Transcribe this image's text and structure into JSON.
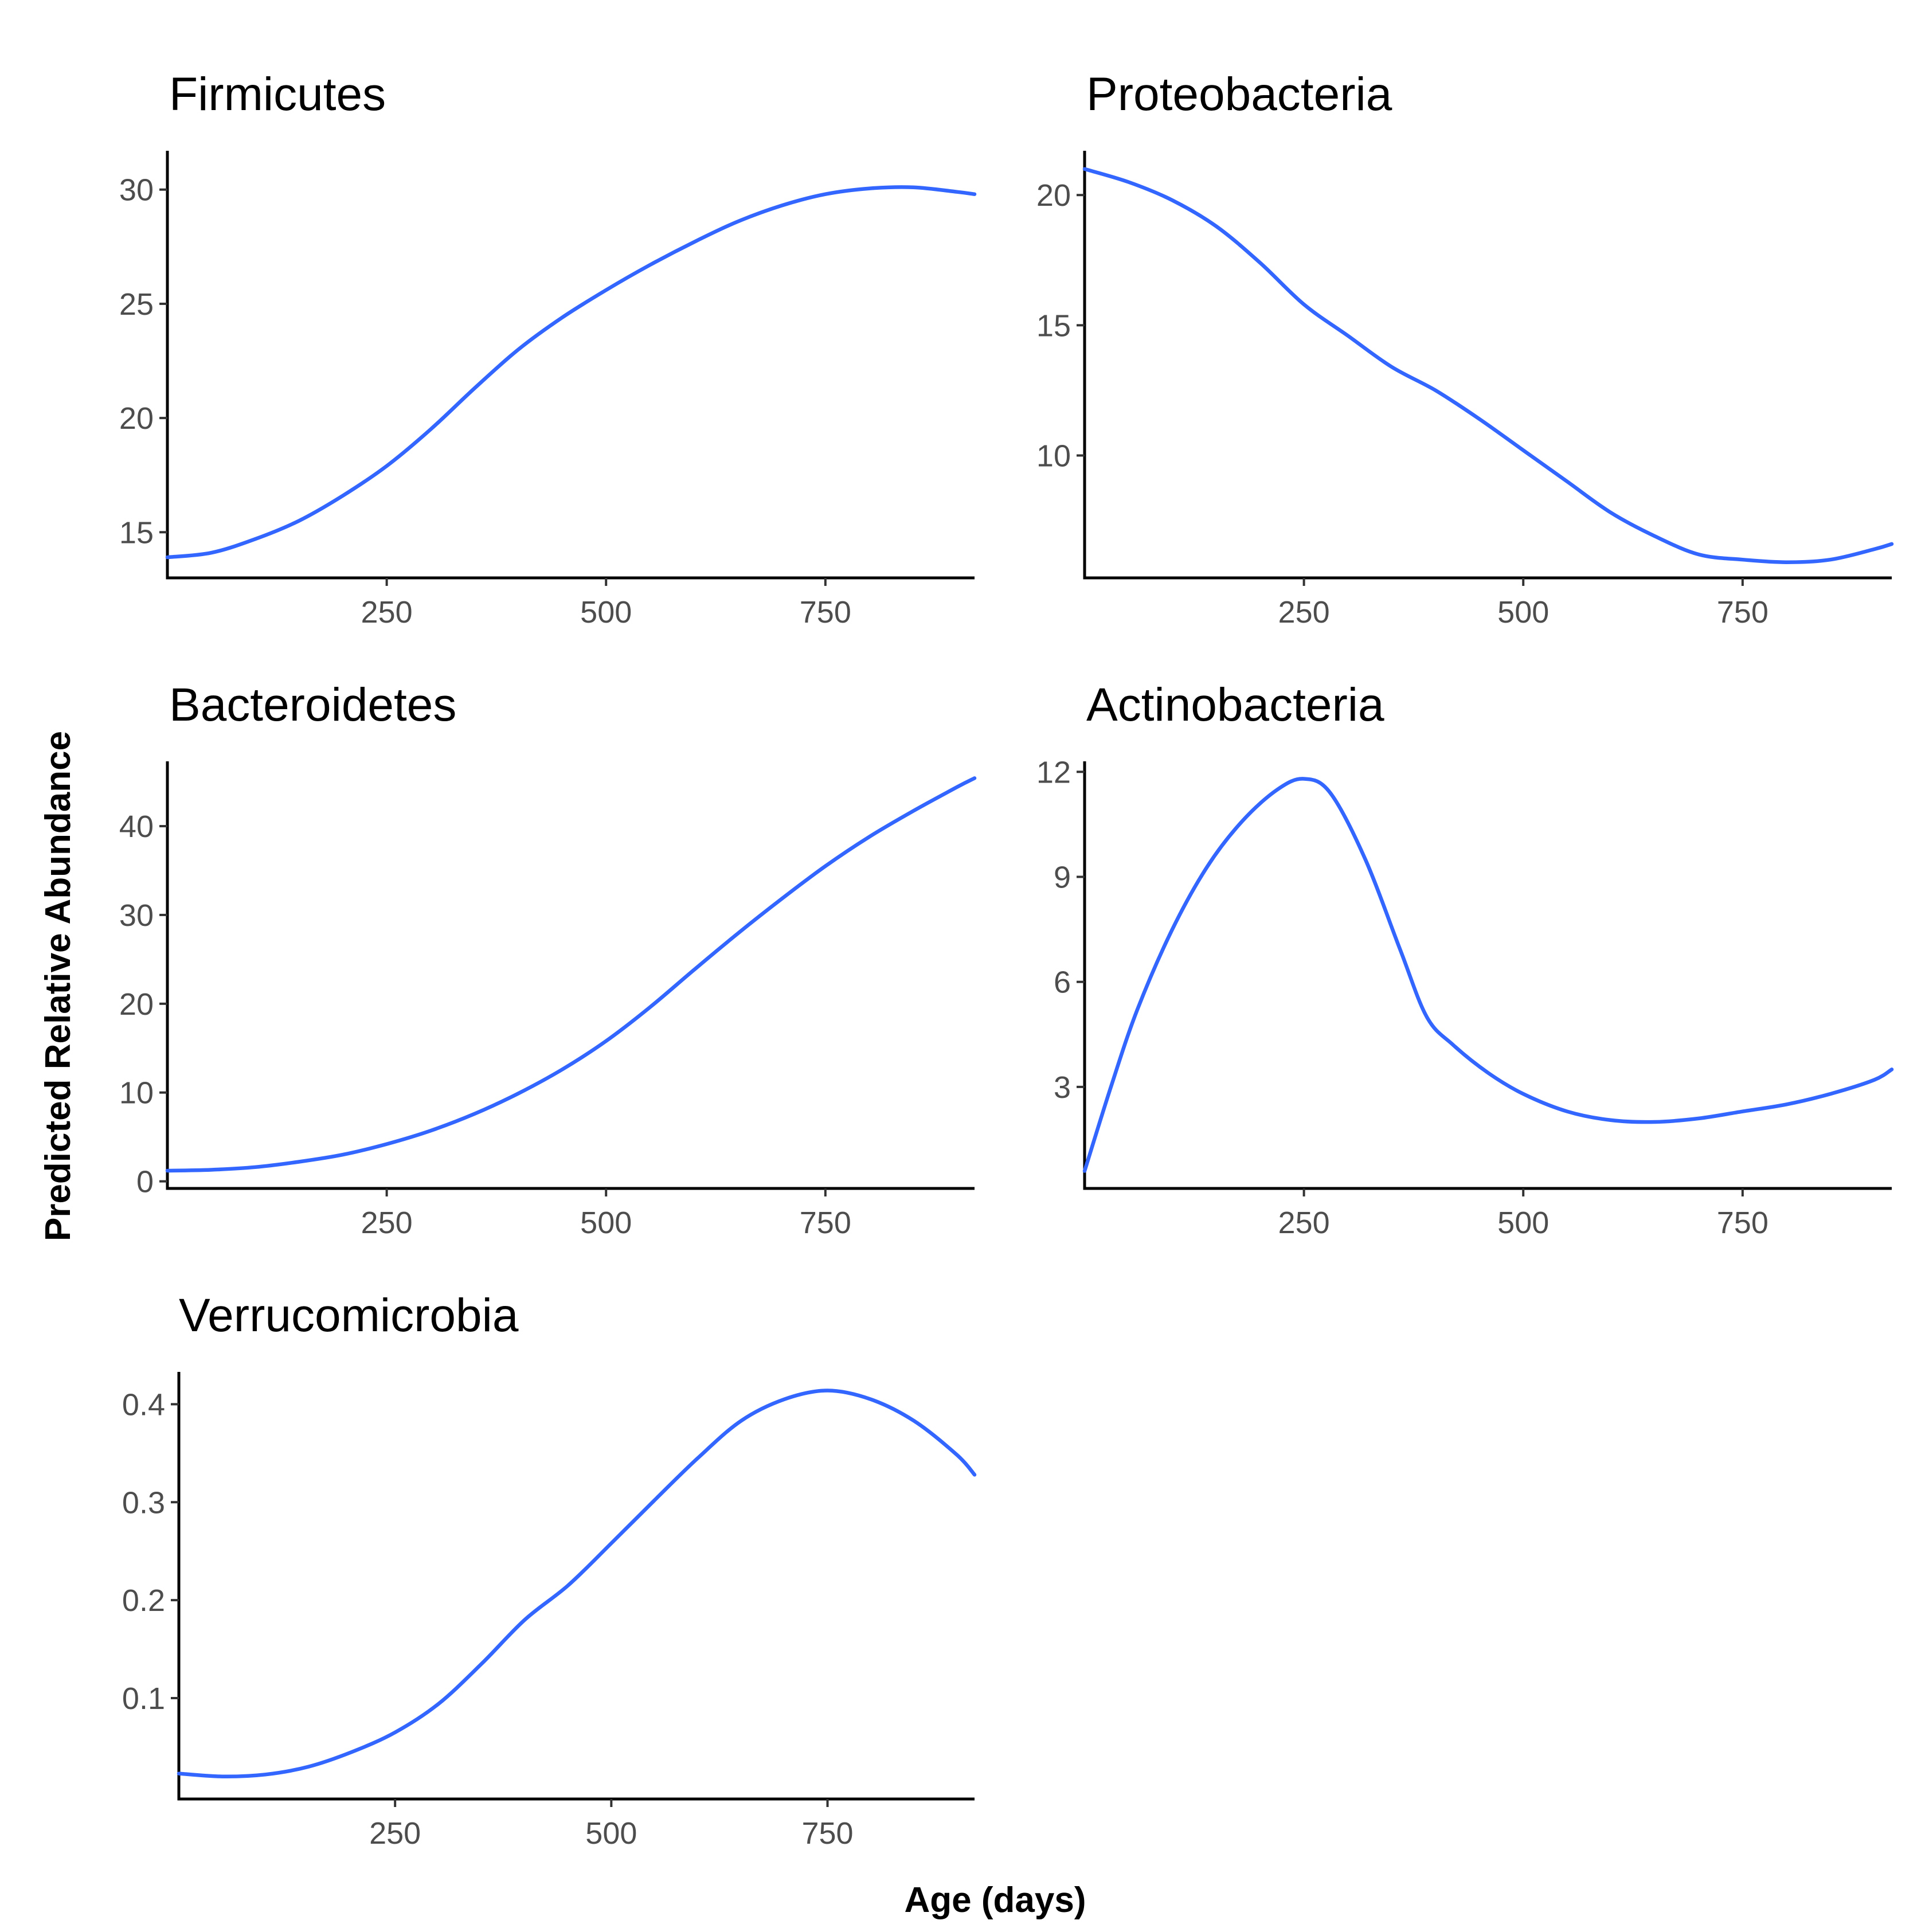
{
  "figure": {
    "xlabel": "Age (days)",
    "ylabel": "Predicted Relative Abundance",
    "line_color": "#3366FF"
  },
  "chart_data": [
    {
      "type": "line",
      "title": "Firmicutes",
      "xlim": [
        0,
        920
      ],
      "ylim": [
        13,
        31.7
      ],
      "xticks": [
        250,
        500,
        750
      ],
      "xtick_labels": [
        "250",
        "500",
        "750"
      ],
      "yticks": [
        15,
        20,
        25,
        30
      ],
      "ytick_labels": [
        "15",
        "20",
        "25",
        "30"
      ],
      "series": [
        {
          "name": "Firmicutes",
          "x": [
            0,
            50,
            100,
            150,
            200,
            250,
            300,
            350,
            400,
            450,
            500,
            550,
            600,
            650,
            700,
            750,
            800,
            850,
            900,
            920
          ],
          "y": [
            13.9,
            14.1,
            14.7,
            15.5,
            16.6,
            17.9,
            19.5,
            21.3,
            23.0,
            24.4,
            25.6,
            26.7,
            27.7,
            28.6,
            29.3,
            29.8,
            30.05,
            30.1,
            29.9,
            29.8
          ]
        }
      ]
    },
    {
      "type": "line",
      "title": "Proteobacteria",
      "xlim": [
        0,
        920
      ],
      "ylim": [
        5.3,
        21.7
      ],
      "xticks": [
        250,
        500,
        750
      ],
      "xtick_labels": [
        "250",
        "500",
        "750"
      ],
      "yticks": [
        10,
        15,
        20
      ],
      "ytick_labels": [
        "10",
        "15",
        "20"
      ],
      "series": [
        {
          "name": "Proteobacteria",
          "x": [
            0,
            50,
            100,
            150,
            200,
            250,
            300,
            350,
            400,
            450,
            500,
            550,
            600,
            650,
            700,
            750,
            800,
            850,
            900,
            920
          ],
          "y": [
            21.0,
            20.5,
            19.8,
            18.8,
            17.4,
            15.8,
            14.6,
            13.4,
            12.5,
            11.4,
            10.2,
            9.0,
            7.8,
            6.9,
            6.2,
            6.0,
            5.9,
            6.0,
            6.4,
            6.6
          ]
        }
      ]
    },
    {
      "type": "line",
      "title": "Bacteroidetes",
      "xlim": [
        0,
        920
      ],
      "ylim": [
        -0.8,
        47.3
      ],
      "xticks": [
        250,
        500,
        750
      ],
      "xtick_labels": [
        "250",
        "500",
        "750"
      ],
      "yticks": [
        0,
        10,
        20,
        30,
        40
      ],
      "ytick_labels": [
        "0",
        "10",
        "20",
        "30",
        "40"
      ],
      "series": [
        {
          "name": "Bacteroidetes",
          "x": [
            0,
            50,
            100,
            150,
            200,
            250,
            300,
            350,
            400,
            450,
            500,
            550,
            600,
            650,
            700,
            750,
            800,
            850,
            900,
            920
          ],
          "y": [
            1.2,
            1.3,
            1.6,
            2.2,
            3.0,
            4.2,
            5.7,
            7.6,
            9.9,
            12.6,
            15.8,
            19.6,
            23.8,
            27.9,
            31.8,
            35.5,
            38.8,
            41.7,
            44.4,
            45.4
          ]
        }
      ]
    },
    {
      "type": "line",
      "title": "Actinobacteria",
      "xlim": [
        0,
        920
      ],
      "ylim": [
        0.1,
        12.3
      ],
      "xticks": [
        250,
        500,
        750
      ],
      "xtick_labels": [
        "250",
        "500",
        "750"
      ],
      "yticks": [
        3,
        6,
        9,
        12
      ],
      "ytick_labels": [
        "3",
        "6",
        "9",
        "12"
      ],
      "series": [
        {
          "name": "Actinobacteria",
          "x": [
            0,
            30,
            60,
            100,
            140,
            180,
            220,
            250,
            280,
            320,
            360,
            390,
            420,
            460,
            500,
            550,
            600,
            650,
            700,
            750,
            800,
            850,
            900,
            920
          ],
          "y": [
            0.6,
            3.0,
            5.2,
            7.5,
            9.3,
            10.6,
            11.5,
            11.8,
            11.4,
            9.5,
            6.9,
            5.0,
            4.2,
            3.4,
            2.8,
            2.3,
            2.05,
            2.0,
            2.1,
            2.3,
            2.5,
            2.8,
            3.2,
            3.5
          ]
        }
      ]
    },
    {
      "type": "line",
      "title": "Verrucomicrobia",
      "xlim": [
        0,
        920
      ],
      "ylim": [
        -0.003,
        0.433
      ],
      "xticks": [
        250,
        500,
        750
      ],
      "xtick_labels": [
        "250",
        "500",
        "750"
      ],
      "yticks": [
        0.1,
        0.2,
        0.3,
        0.4
      ],
      "ytick_labels": [
        "0.1",
        "0.2",
        "0.3",
        "0.4"
      ],
      "series": [
        {
          "name": "Verrucomicrobia",
          "x": [
            0,
            50,
            100,
            150,
            200,
            250,
            300,
            350,
            400,
            450,
            500,
            550,
            600,
            650,
            700,
            750,
            800,
            850,
            900,
            920
          ],
          "y": [
            0.023,
            0.02,
            0.022,
            0.03,
            0.045,
            0.065,
            0.094,
            0.135,
            0.18,
            0.215,
            0.258,
            0.302,
            0.345,
            0.383,
            0.405,
            0.414,
            0.405,
            0.383,
            0.348,
            0.328
          ]
        }
      ]
    }
  ]
}
